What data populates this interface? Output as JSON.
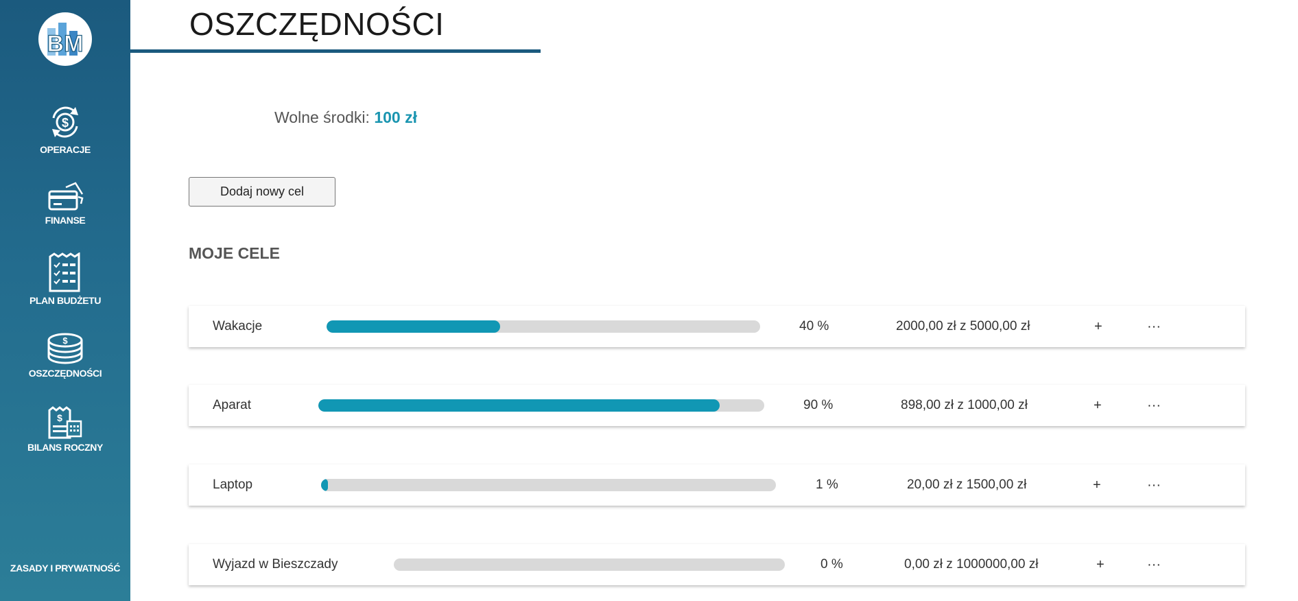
{
  "sidebar": {
    "logo_text": "BM",
    "items": [
      {
        "label": "OPERACJE",
        "icon": "dollar-cycle-icon"
      },
      {
        "label": "FINANSE",
        "icon": "credit-card-icon"
      },
      {
        "label": "PLAN BUDŻETU",
        "icon": "checklist-icon"
      },
      {
        "label": "OSZCZĘDNOŚCI",
        "icon": "coins-stack-icon"
      },
      {
        "label": "BILANS ROCZNY",
        "icon": "annual-balance-icon"
      }
    ],
    "footer_link": "ZASADY I PRYWATNOŚĆ"
  },
  "header": {
    "title": "OSZCZĘDNOŚCI"
  },
  "funds": {
    "label": "Wolne środki:",
    "amount": "100 zł"
  },
  "add_goal_button": "Dodaj nowy cel",
  "section_title": "MOJE CELE",
  "accent_color": "#1197b4",
  "goals": [
    {
      "name": "Wakacje",
      "percent_text": "40 %",
      "progress": 0.4,
      "amount": "2000,00 zł z 5000,00 zł",
      "add": "+",
      "menu": "···"
    },
    {
      "name": "Aparat",
      "percent_text": "90 %",
      "progress": 0.9,
      "amount": "898,00 zł z 1000,00 zł",
      "add": "+",
      "menu": "···"
    },
    {
      "name": "Laptop",
      "percent_text": "1 %",
      "progress": 0.01,
      "amount": "20,00 zł z 1500,00 zł",
      "add": "+",
      "menu": "···"
    },
    {
      "name": "Wyjazd w Bieszczady",
      "percent_text": "0 %",
      "progress": 0.0,
      "amount": "0,00 zł z 1000000,00 zł",
      "add": "+",
      "menu": "···"
    }
  ]
}
